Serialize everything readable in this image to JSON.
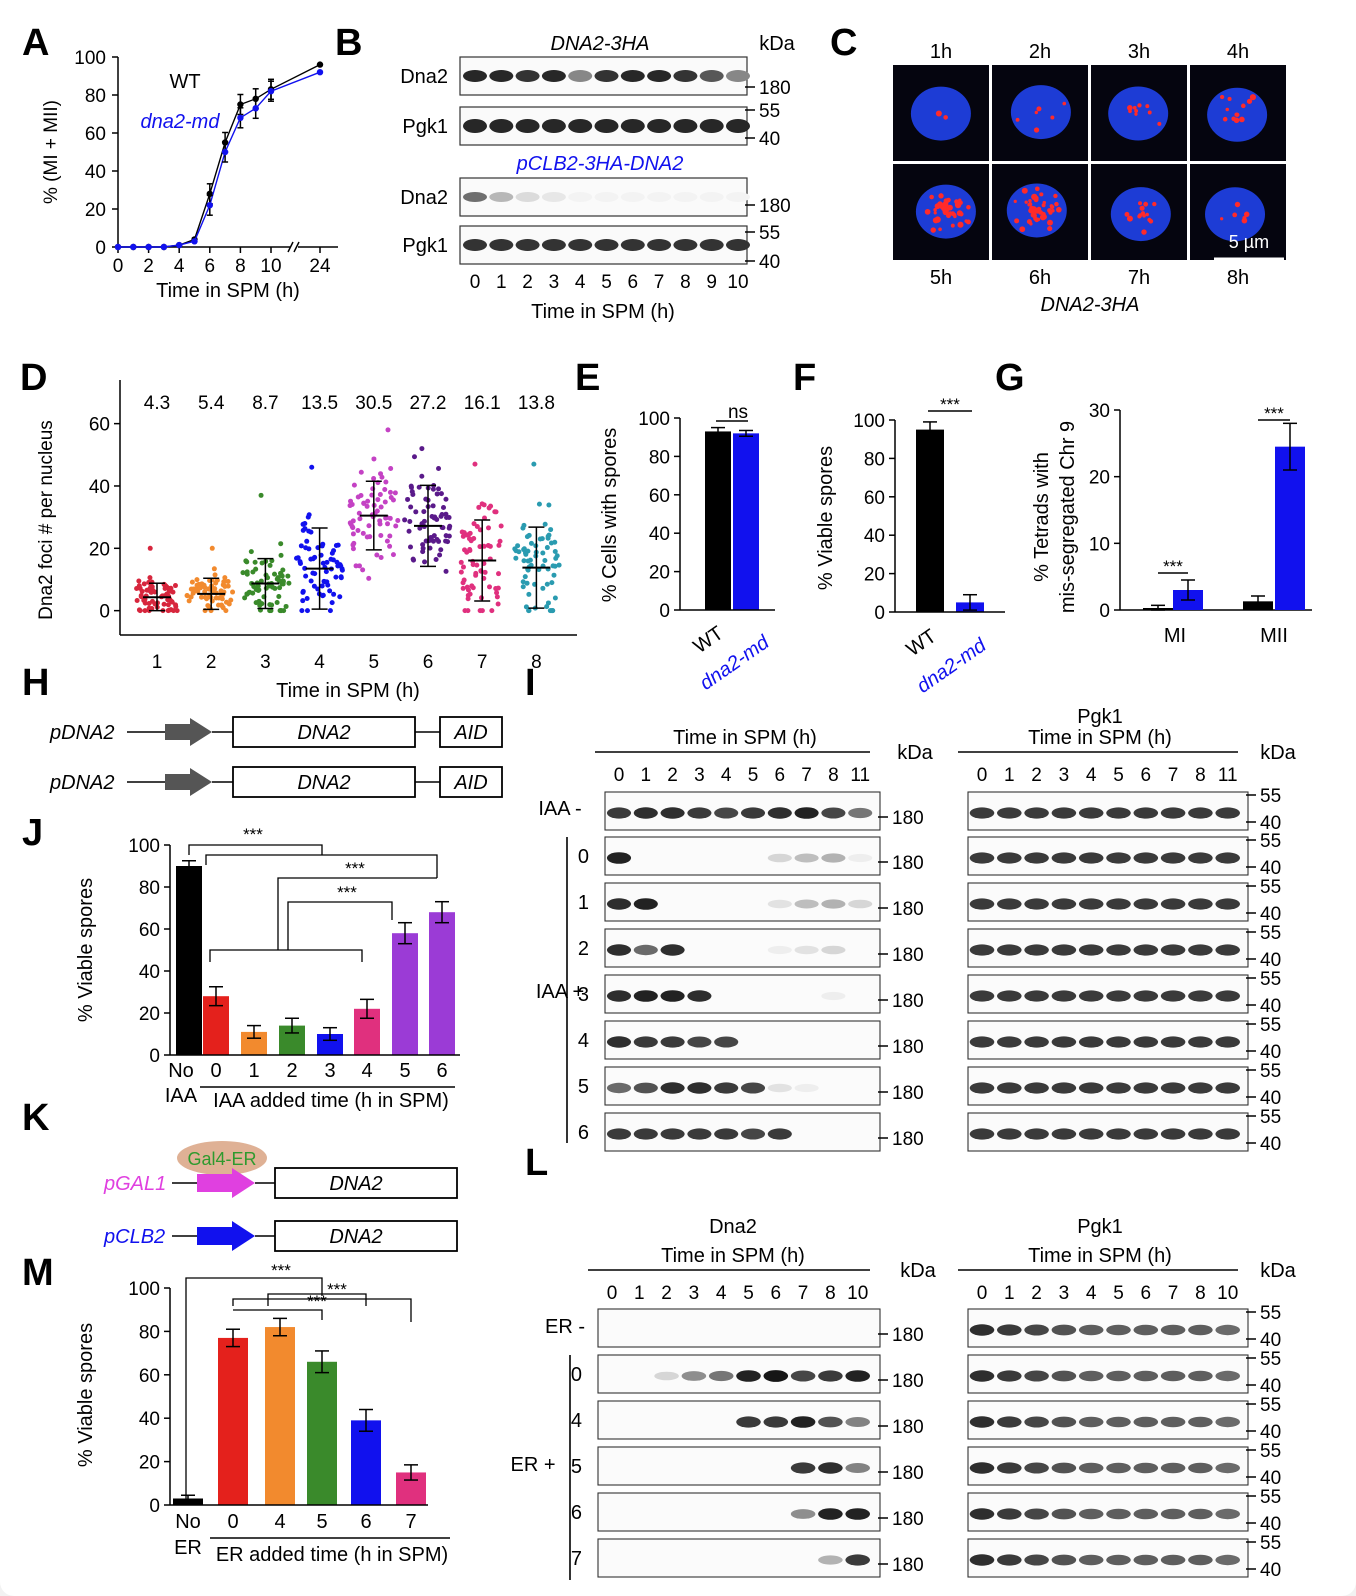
{
  "colors": {
    "black": "#000000",
    "blue": "#1111ee",
    "red": "#e4211c",
    "orange": "#f28a2e",
    "green": "#3a8a2b",
    "pink": "#e0307e",
    "purple": "#9b3bd6",
    "magenta": "#e040e0",
    "gal4": "#dba98a",
    "gal4text": "#2e9a2e",
    "teal": "#2a9bb0",
    "darkpurple": "#5a1a8a",
    "red2": "#d7263d"
  },
  "panels": {
    "A": "A",
    "B": "B",
    "C": "C",
    "D": "D",
    "E": "E",
    "F": "F",
    "G": "G",
    "H": "H",
    "I": "I",
    "J": "J",
    "K": "K",
    "L": "L",
    "M": "M"
  },
  "chart_data": [
    {
      "id": "A",
      "type": "line",
      "xlabel": "Time in SPM (h)",
      "ylabel": "% (MI + MII)",
      "xticks": [
        "0",
        "2",
        "4",
        "6",
        "8",
        "10",
        "24"
      ],
      "yticks": [
        "0",
        "20",
        "40",
        "60",
        "80",
        "100"
      ],
      "ylim": [
        0,
        100
      ],
      "series": [
        {
          "name": "WT",
          "color": "#000000",
          "x": [
            0,
            1,
            2,
            3,
            4,
            5,
            6,
            7,
            8,
            9,
            10,
            24
          ],
          "y": [
            0,
            0,
            0,
            0,
            1,
            4,
            28,
            55,
            75,
            78,
            83,
            96
          ]
        },
        {
          "name": "dna2-md",
          "color": "#1111ee",
          "x": [
            0,
            1,
            2,
            3,
            4,
            5,
            6,
            7,
            8,
            9,
            10,
            24
          ],
          "y": [
            0,
            0,
            0,
            0,
            1,
            3,
            22,
            50,
            68,
            73,
            82,
            92
          ]
        }
      ]
    },
    {
      "id": "D",
      "type": "scatter",
      "xlabel": "Time in SPM (h)",
      "ylabel": "Dna2 foci # per nucleus",
      "categories": [
        "1",
        "2",
        "3",
        "4",
        "5",
        "6",
        "7",
        "8"
      ],
      "yticks": [
        "0",
        "20",
        "40",
        "60"
      ],
      "ylim": [
        -3,
        74
      ],
      "means": [
        "4.3",
        "5.4",
        "8.7",
        "13.5",
        "30.5",
        "27.2",
        "16.1",
        "13.8"
      ],
      "mean_values": [
        4.3,
        5.4,
        8.7,
        13.5,
        30.5,
        27.2,
        16.1,
        13.8
      ],
      "sd": [
        4.5,
        5,
        8,
        13,
        11,
        13,
        13,
        13
      ],
      "colors": [
        "#d7263d",
        "#f28a2e",
        "#3a8a2b",
        "#1111ee",
        "#c442c4",
        "#5a1a8a",
        "#e0307e",
        "#2a9bb0"
      ],
      "max": [
        20,
        20,
        37,
        46,
        58,
        52,
        47,
        47
      ]
    },
    {
      "id": "E",
      "type": "bar",
      "categories": [
        "WT",
        "dna2-md"
      ],
      "values": [
        93,
        92
      ],
      "err": [
        2,
        1.5
      ],
      "colors": [
        "#000000",
        "#1111ee"
      ],
      "ylabel": "% Cells with spores",
      "yticks": [
        "0",
        "20",
        "40",
        "60",
        "80",
        "100"
      ],
      "ylim": [
        0,
        100
      ],
      "sig": "ns"
    },
    {
      "id": "F",
      "type": "bar",
      "categories": [
        "WT",
        "dna2-md"
      ],
      "values": [
        95,
        5
      ],
      "err": [
        4,
        4
      ],
      "colors": [
        "#000000",
        "#1111ee"
      ],
      "ylabel": "% Viable spores",
      "yticks": [
        "0",
        "20",
        "40",
        "60",
        "80",
        "100"
      ],
      "ylim": [
        0,
        100
      ],
      "sig": "***"
    },
    {
      "id": "G",
      "type": "bar",
      "categories": [
        "MI",
        "MII"
      ],
      "ylabel_line1": "% Tetrads with",
      "ylabel_line2": "mis-segregated Chr 9",
      "yticks": [
        "0",
        "10",
        "20",
        "30"
      ],
      "ylim": [
        0,
        30
      ],
      "series": [
        {
          "name": "WT",
          "color": "#000000",
          "values": [
            0.3,
            1.3
          ],
          "err": [
            0.4,
            0.8
          ]
        },
        {
          "name": "dna2-md",
          "color": "#1111ee",
          "values": [
            3.0,
            24.5
          ],
          "err": [
            1.5,
            3.5
          ]
        }
      ],
      "sig": [
        "***",
        "***"
      ]
    },
    {
      "id": "J",
      "type": "bar",
      "categories": [
        "No IAA",
        "0",
        "1",
        "2",
        "3",
        "4",
        "5",
        "6"
      ],
      "values": [
        90,
        28,
        11,
        14,
        10,
        22,
        58,
        68
      ],
      "err": [
        2.5,
        4.5,
        3,
        3.5,
        3,
        4.5,
        5,
        5
      ],
      "colors": [
        "#000000",
        "#e4211c",
        "#f28a2e",
        "#3a8a2b",
        "#1111ee",
        "#e0307e",
        "#9b3bd6",
        "#9b3bd6"
      ],
      "ylabel": "% Viable spores",
      "xlabel": "IAA added time (h in SPM)",
      "yticks": [
        "0",
        "20",
        "40",
        "60",
        "80",
        "100"
      ],
      "ylim": [
        0,
        100
      ],
      "sig": [
        "***",
        "***",
        "***"
      ],
      "no_label_1": "No",
      "no_label_2": "IAA"
    },
    {
      "id": "M",
      "type": "bar",
      "categories": [
        "No ER",
        "0",
        "4",
        "5",
        "6",
        "7"
      ],
      "values": [
        3,
        77,
        82,
        66,
        39,
        15
      ],
      "err": [
        1.5,
        4,
        4,
        5,
        5,
        3.5
      ],
      "colors": [
        "#000000",
        "#e4211c",
        "#f28a2e",
        "#3a8a2b",
        "#1111ee",
        "#e0307e"
      ],
      "ylabel": "% Viable spores",
      "xlabel": "ER added time (h in SPM)",
      "yticks": [
        "0",
        "20",
        "40",
        "60",
        "80",
        "100"
      ],
      "ylim": [
        0,
        100
      ],
      "sig": [
        "***",
        "***",
        "***"
      ],
      "no_label_1": "No",
      "no_label_2": "ER"
    }
  ],
  "blotB": {
    "title1": "DNA2-3HA",
    "title2": "pCLB2-3HA-DNA2",
    "kda": "kDa",
    "row_dna2": "Dna2",
    "row_pgk1": "Pgk1",
    "m180": "180",
    "m55": "55",
    "m40": "40",
    "lanes": [
      "0",
      "1",
      "2",
      "3",
      "4",
      "5",
      "6",
      "7",
      "8",
      "9",
      "10"
    ],
    "xlabel": "Time in SPM (h)",
    "wt_dna2": [
      0.9,
      0.9,
      0.85,
      0.9,
      0.5,
      0.85,
      0.9,
      0.9,
      0.85,
      0.7,
      0.5
    ],
    "md_dna2": [
      0.6,
      0.3,
      0.15,
      0.1,
      0.05,
      0.05,
      0.05,
      0.05,
      0.05,
      0.05,
      0.05
    ]
  },
  "panelC": {
    "top": [
      "1h",
      "2h",
      "3h",
      "4h"
    ],
    "bottom": [
      "5h",
      "6h",
      "7h",
      "8h"
    ],
    "scale": "5 µm",
    "caption": "DNA2-3HA",
    "foci": [
      2,
      6,
      9,
      12,
      40,
      45,
      14,
      6
    ]
  },
  "panelH": {
    "promoter": "pDNA2",
    "gene": "DNA2",
    "tag": "AID"
  },
  "panelK": {
    "gal1": "pGAL1",
    "clb2": "pCLB2",
    "gene": "DNA2",
    "gal4": "Gal4-ER"
  },
  "panelI": {
    "header": "Time in SPM (h)",
    "pgk1_header": "Pgk1",
    "kda": "kDa",
    "lanes": [
      "0",
      "1",
      "2",
      "3",
      "4",
      "5",
      "6",
      "7",
      "8",
      "11"
    ],
    "minus": "IAA -",
    "plus": "IAA +",
    "rows": [
      "0",
      "1",
      "2",
      "3",
      "4",
      "5",
      "6"
    ],
    "m180": "180",
    "m55": "55",
    "m40": "40",
    "intensity": [
      [
        0.8,
        0.85,
        0.85,
        0.8,
        0.75,
        0.8,
        0.85,
        0.9,
        0.75,
        0.55
      ],
      [
        0.9,
        0,
        0,
        0,
        0,
        0,
        0.15,
        0.25,
        0.3,
        0.05
      ],
      [
        0.85,
        0.9,
        0,
        0,
        0,
        0,
        0.1,
        0.25,
        0.3,
        0.15
      ],
      [
        0.85,
        0.6,
        0.85,
        0,
        0,
        0,
        0.05,
        0.1,
        0.15,
        0
      ],
      [
        0.85,
        0.9,
        0.9,
        0.85,
        0,
        0,
        0,
        0,
        0.05,
        0
      ],
      [
        0.85,
        0.8,
        0.8,
        0.75,
        0.75,
        0,
        0,
        0,
        0,
        0
      ],
      [
        0.6,
        0.7,
        0.85,
        0.85,
        0.8,
        0.75,
        0.1,
        0.05,
        0,
        0
      ],
      [
        0.8,
        0.8,
        0.8,
        0.8,
        0.8,
        0.75,
        0.8,
        0,
        0,
        0
      ]
    ]
  },
  "panelL": {
    "dna2_header": "Dna2",
    "pgk1_header": "Pgk1",
    "header": "Time in SPM (h)",
    "kda": "kDa",
    "lanes": [
      "0",
      "1",
      "2",
      "3",
      "4",
      "5",
      "6",
      "7",
      "8",
      "10"
    ],
    "minus": "ER -",
    "plus": "ER +",
    "rows": [
      "0",
      "4",
      "5",
      "6",
      "7"
    ],
    "m180": "180",
    "m55": "55",
    "m40": "40",
    "intensity": [
      [
        0,
        0,
        0,
        0,
        0,
        0,
        0,
        0,
        0,
        0
      ],
      [
        0,
        0,
        0.15,
        0.45,
        0.55,
        0.9,
        0.95,
        0.75,
        0.8,
        0.9
      ],
      [
        0,
        0,
        0,
        0,
        0,
        0.8,
        0.8,
        0.9,
        0.7,
        0.5
      ],
      [
        0,
        0,
        0,
        0,
        0,
        0,
        0,
        0.8,
        0.85,
        0.5
      ],
      [
        0,
        0,
        0,
        0,
        0,
        0,
        0,
        0.45,
        0.9,
        0.9
      ],
      [
        0,
        0,
        0,
        0,
        0,
        0,
        0,
        0,
        0.3,
        0.8
      ]
    ]
  }
}
